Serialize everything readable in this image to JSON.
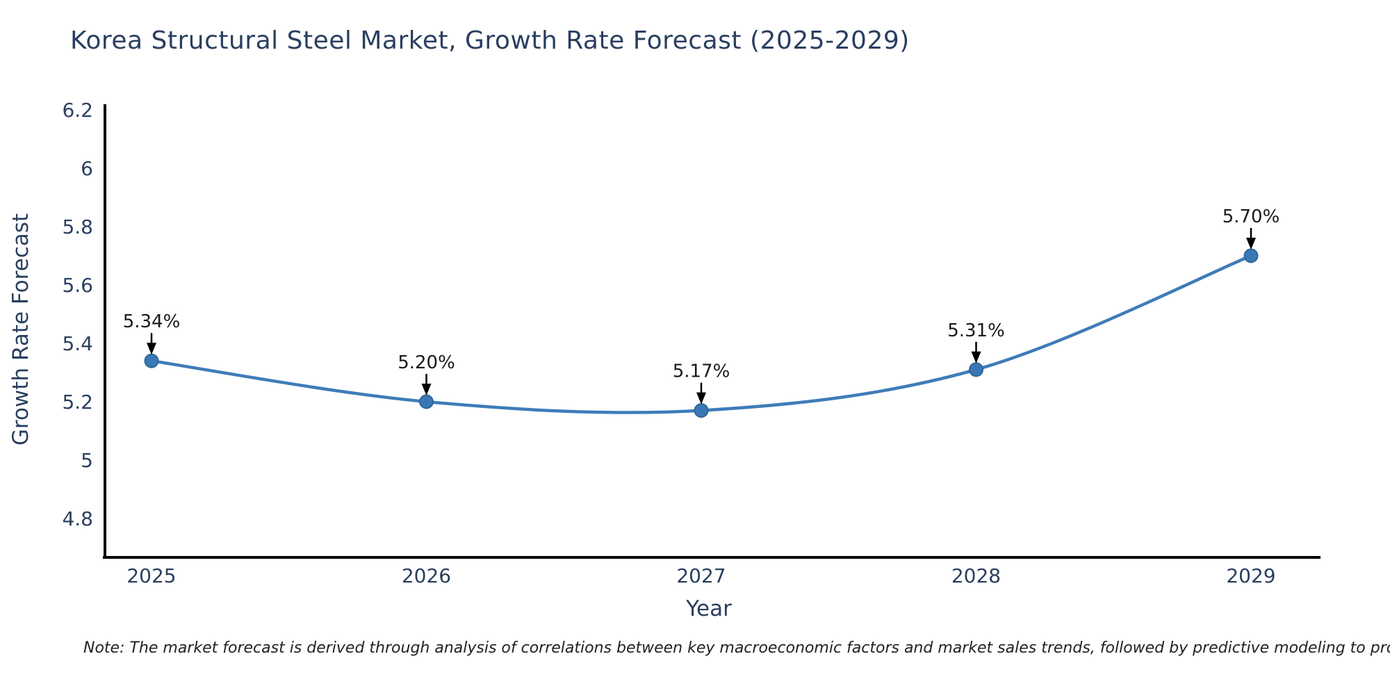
{
  "header": {
    "title": "Korea Structural Steel Market, Growth Rate Forecast (2025-2029)"
  },
  "footer": {
    "note": "Note: The market forecast is derived through analysis of correlations between key macroeconomic factors and market sales trends, followed by predictive modeling to project future sales"
  },
  "chart_data": {
    "type": "line",
    "title": "Korea Structural Steel Market, Growth Rate Forecast (2025-2029)",
    "xlabel": "Year",
    "ylabel": "Growth Rate Forecast",
    "x": [
      "2025",
      "2026",
      "2027",
      "2028",
      "2029"
    ],
    "series": [
      {
        "name": "Growth Rate Forecast",
        "values": [
          5.34,
          5.2,
          5.17,
          5.31,
          5.7
        ]
      }
    ],
    "point_labels": [
      "5.34%",
      "5.20%",
      "5.17%",
      "5.31%",
      "5.70%"
    ],
    "yticks": [
      4.8,
      5,
      5.2,
      5.4,
      5.6,
      5.8,
      6,
      6.2
    ],
    "ytick_labels": [
      "4.8",
      "5",
      "5.2",
      "5.4",
      "5.6",
      "5.8",
      "6",
      "6.2"
    ],
    "ylim": [
      4.67,
      6.27
    ],
    "line_shape": "spline",
    "grid": false,
    "legend": "none",
    "colors": {
      "line": "#3e7cb8",
      "marker": "#3a78b5",
      "marker_edge": "#2f6698",
      "axis_line": "#000000",
      "tick_text": "#2a3f5f",
      "title_text": "#2a3f5f",
      "annotation_text": "#1a1a1a",
      "annotation_arrow": "#000000",
      "background": "#ffffff"
    }
  }
}
